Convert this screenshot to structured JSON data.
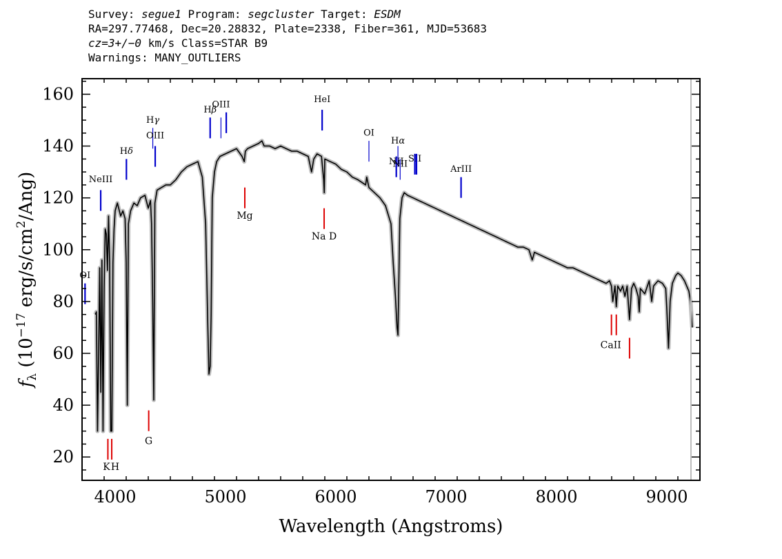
{
  "header": {
    "line1": {
      "survey_label": "Survey: ",
      "survey": "segue1",
      "program_label": " Program: ",
      "program": "segcluster",
      "target_label": " Target: ",
      "target": "ESDM"
    },
    "line2": "RA=297.77468, Dec=20.28832, Plate=2338, Fiber=361, MJD=53683",
    "line3": {
      "cz_label": "cz=3+/−0",
      "cz_unit": " km/s Class=STAR B9"
    },
    "line4": "Warnings: MANY_OUTLIERS"
  },
  "chart_data": {
    "type": "line",
    "xlabel": "Wavelength (Angstroms)",
    "ylabel": "f_λ (10^-17 erg/s/cm^2/Ang)",
    "xlim": [
      3700,
      9300
    ],
    "ylim": [
      11,
      166
    ],
    "xticks": [
      4000,
      5000,
      6000,
      7000,
      8000,
      9000
    ],
    "yticks": [
      20,
      40,
      60,
      80,
      100,
      120,
      140,
      160
    ],
    "grid": false,
    "colors": {
      "spectrum": "#000000",
      "error": "#bdbdbd",
      "emission": "#0000cc",
      "absorption": "#dd0000"
    },
    "spectrum": {
      "x": [
        3820,
        3830,
        3840,
        3850,
        3860,
        3870,
        3880,
        3890,
        3900,
        3910,
        3920,
        3930,
        3940,
        3950,
        3960,
        3970,
        3980,
        3990,
        4000,
        4020,
        4050,
        4070,
        4090,
        4100,
        4110,
        4120,
        4140,
        4170,
        4200,
        4230,
        4270,
        4300,
        4320,
        4330,
        4340,
        4350,
        4360,
        4380,
        4420,
        4460,
        4500,
        4550,
        4600,
        4650,
        4700,
        4750,
        4790,
        4820,
        4840,
        4850,
        4861,
        4870,
        4880,
        4900,
        4920,
        4950,
        5000,
        5050,
        5100,
        5150,
        5170,
        5180,
        5200,
        5250,
        5300,
        5330,
        5350,
        5400,
        5450,
        5500,
        5550,
        5600,
        5650,
        5700,
        5750,
        5780,
        5800,
        5830,
        5870,
        5890,
        5895,
        5900,
        5950,
        6000,
        6050,
        6100,
        6150,
        6200,
        6270,
        6280,
        6300,
        6350,
        6400,
        6450,
        6500,
        6520,
        6540,
        6555,
        6563,
        6570,
        6580,
        6600,
        6620,
        6650,
        6700,
        6750,
        6800,
        6850,
        6900,
        6950,
        7000,
        7050,
        7100,
        7150,
        7200,
        7250,
        7300,
        7350,
        7400,
        7450,
        7500,
        7550,
        7600,
        7650,
        7700,
        7750,
        7780,
        7800,
        7850,
        7900,
        7950,
        8000,
        8050,
        8100,
        8150,
        8200,
        8250,
        8300,
        8350,
        8400,
        8450,
        8480,
        8498,
        8510,
        8530,
        8542,
        8555,
        8580,
        8600,
        8620,
        8640,
        8662,
        8680,
        8700,
        8720,
        8740,
        8750,
        8760,
        8800,
        8840,
        8863,
        8880,
        8920,
        8960,
        8990,
        9000,
        9015,
        9030,
        9050,
        9080,
        9100,
        9130,
        9160,
        9200,
        9215,
        9230
      ],
      "y": [
        75,
        76,
        30,
        60,
        93,
        45,
        96,
        30,
        85,
        108,
        106,
        92,
        113,
        95,
        30,
        30,
        95,
        108,
        115,
        118,
        113,
        115,
        112,
        95,
        40,
        110,
        115,
        118,
        117,
        120,
        121,
        116,
        119,
        110,
        80,
        42,
        118,
        123,
        124,
        125,
        125,
        127,
        130,
        132,
        133,
        134,
        128,
        110,
        70,
        52,
        55,
        75,
        120,
        130,
        134,
        136,
        137,
        138,
        139,
        136,
        134,
        138,
        139,
        140,
        141,
        142,
        140,
        140,
        139,
        140,
        139,
        138,
        138,
        137,
        136,
        130,
        135,
        137,
        136,
        127,
        122,
        135,
        134,
        133,
        131,
        130,
        128,
        127,
        125,
        128,
        124,
        122,
        120,
        117,
        110,
        95,
        82,
        70,
        67,
        85,
        112,
        120,
        122,
        121,
        120,
        119,
        118,
        117,
        116,
        115,
        114,
        113,
        112,
        111,
        110,
        109,
        108,
        107,
        106,
        105,
        104,
        103,
        102,
        101,
        101,
        100,
        96,
        99,
        98,
        97,
        96,
        95,
        94,
        93,
        93,
        92,
        91,
        90,
        89,
        88,
        87,
        88,
        86,
        80,
        86,
        78,
        86,
        84,
        86,
        82,
        86,
        73,
        85,
        87,
        85,
        82,
        76,
        85,
        83,
        88,
        80,
        86,
        88,
        87,
        85,
        77,
        62,
        80,
        87,
        90,
        91,
        90,
        88,
        84,
        80,
        70
      ]
    },
    "emission_lines": [
      {
        "label": "OI",
        "prefix": "",
        "x": 3727,
        "y1": 79,
        "y2": 87,
        "label_y": 89,
        "thick": true,
        "clip": true
      },
      {
        "label": "NeIII",
        "prefix": "",
        "x": 3869,
        "y1": 115,
        "y2": 123,
        "label_y": 126,
        "thick": true
      },
      {
        "label": "δ",
        "prefix": "H",
        "x": 4102,
        "y1": 127,
        "y2": 135,
        "label_y": 137,
        "thick": true
      },
      {
        "label": "γ",
        "prefix": "H",
        "x": 4341,
        "y1": 139,
        "y2": 147,
        "label_y": 149,
        "thick": false
      },
      {
        "label": "OIII",
        "prefix": "",
        "x": 4363,
        "y1": 132,
        "y2": 140,
        "label_y": 143,
        "thick": true
      },
      {
        "label": "β",
        "prefix": "H",
        "x": 4861,
        "y1": 143,
        "y2": 151,
        "label_y": 153,
        "thick": true
      },
      {
        "label": "OIII",
        "prefix": "",
        "x": 4959,
        "y1": 143,
        "y2": 151,
        "label_y": 155,
        "thick": false
      },
      {
        "label": "",
        "prefix": "",
        "x": 5007,
        "y1": 145,
        "y2": 153,
        "label_y": 155,
        "thick": true
      },
      {
        "label": "HeI",
        "prefix": "",
        "x": 5876,
        "y1": 146,
        "y2": 154,
        "label_y": 157,
        "thick": true
      },
      {
        "label": "OI",
        "prefix": "",
        "x": 6300,
        "y1": 134,
        "y2": 142,
        "label_y": 144,
        "thick": false
      },
      {
        "label": "NII",
        "prefix": "",
        "x": 6548,
        "y1": 128,
        "y2": 136,
        "label_y": 133,
        "thick": true
      },
      {
        "label": "α",
        "prefix": "H",
        "x": 6563,
        "y1": 132,
        "y2": 140,
        "label_y": 141,
        "thick": false
      },
      {
        "label": "NII",
        "prefix": "",
        "x": 6583,
        "y1": 127,
        "y2": 135,
        "label_y": 132,
        "thick": false
      },
      {
        "label": "SII",
        "prefix": "",
        "x": 6716,
        "y1": 129,
        "y2": 137,
        "label_y": 134,
        "thick": true
      },
      {
        "label": "",
        "prefix": "",
        "x": 6731,
        "y1": 129,
        "y2": 137,
        "label_y": 134,
        "thick": true
      },
      {
        "label": "ArIII",
        "prefix": "",
        "x": 7135,
        "y1": 120,
        "y2": 128,
        "label_y": 130,
        "thick": true
      }
    ],
    "absorption_lines": [
      {
        "label": "K",
        "x": 3934,
        "y1": 19,
        "y2": 27,
        "label_y": 15
      },
      {
        "label": "H",
        "x": 3969,
        "y1": 19,
        "y2": 27,
        "label_y": 15
      },
      {
        "label": "G",
        "x": 4304,
        "y1": 30,
        "y2": 38,
        "label_y": 25
      },
      {
        "label": "Mg",
        "x": 5175,
        "y1": 116,
        "y2": 124,
        "label_y": 112
      },
      {
        "label": "Na D",
        "x": 5894,
        "y1": 108,
        "y2": 116,
        "label_y": 104
      },
      {
        "label": "",
        "x": 8498,
        "y1": 67,
        "y2": 75,
        "label_y": 62
      },
      {
        "label": "CaII",
        "x": 8542,
        "y1": 67,
        "y2": 75,
        "label_y": 62
      },
      {
        "label": "",
        "x": 8662,
        "y1": 58,
        "y2": 66,
        "label_y": 53
      }
    ]
  }
}
